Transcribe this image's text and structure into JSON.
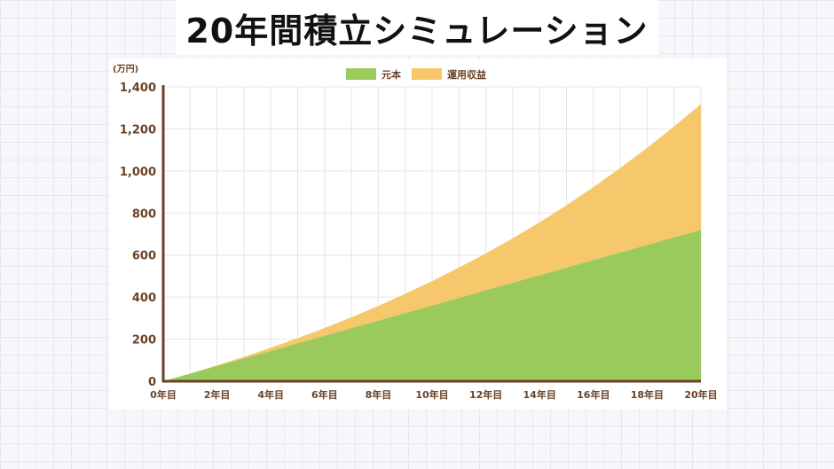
{
  "title": "20年間積立シミュレーション",
  "chart_data": {
    "type": "area",
    "stacked": true,
    "unit": "(万円)",
    "x": [
      "0年目",
      "1年目",
      "2年目",
      "3年目",
      "4年目",
      "5年目",
      "6年目",
      "7年目",
      "8年目",
      "9年目",
      "10年目",
      "11年目",
      "12年目",
      "13年目",
      "14年目",
      "15年目",
      "16年目",
      "17年目",
      "18年目",
      "19年目",
      "20年目"
    ],
    "x_tick_labels": [
      "0年目",
      "2年目",
      "4年目",
      "6年目",
      "8年目",
      "10年目",
      "12年目",
      "14年目",
      "16年目",
      "18年目",
      "20年目"
    ],
    "series": [
      {
        "name": "元本",
        "color": "#99ca5b",
        "values": [
          0,
          36,
          72,
          108,
          144,
          180,
          216,
          252,
          288,
          324,
          360,
          396,
          432,
          468,
          504,
          540,
          576,
          612,
          648,
          684,
          720
        ]
      },
      {
        "name": "運用収益",
        "color": "#f6c76b",
        "values": [
          0,
          1,
          4,
          8,
          15,
          25,
          37,
          52,
          70,
          92,
          116,
          145,
          176,
          212,
          252,
          297,
          347,
          402,
          462,
          528,
          598
        ]
      }
    ],
    "ylim": [
      0,
      1400
    ],
    "y_ticks": [
      0,
      200,
      400,
      600,
      800,
      1000,
      1200,
      1400
    ],
    "y_tick_labels": [
      "0",
      "200",
      "400",
      "600",
      "800",
      "1,000",
      "1,200",
      "1,400"
    ],
    "legend_position": "top-center",
    "grid": true,
    "axis_color": "#6b4226",
    "grid_color": "#e5e5ec"
  }
}
